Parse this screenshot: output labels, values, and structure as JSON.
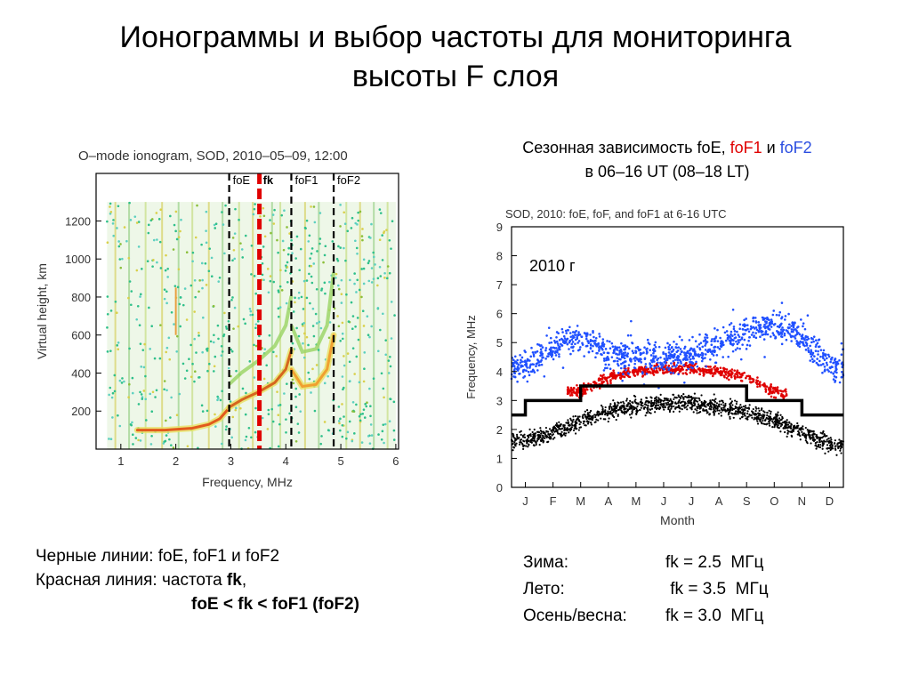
{
  "slide": {
    "title_line1": "Ионограммы и выбор частоты для мониторинга",
    "title_line2": "высоты F слоя"
  },
  "right_caption": {
    "part1": "Сезонная зависимость foE, ",
    "fof1": "foF1",
    "and": " и ",
    "fof2": "foF2",
    "line2": "в 06–16 UT (08–18 LT)"
  },
  "left_notes": {
    "line1": "Черные линии: foE, foF1 и foF2",
    "line2_prefix": "Красная линия: частота ",
    "line2_bold": "fk",
    "line2_suffix": ",",
    "line3": "foE < fk < foF1 (foF2)"
  },
  "right_notes": [
    {
      "label": "Зима:",
      "value": "fk = 2.5  МГц"
    },
    {
      "label": "Лето:",
      "value": " fk = 3.5  МГц"
    },
    {
      "label": "Осень/весна:",
      "value": "fk = 3.0  МГц"
    }
  ],
  "chart_data": [
    {
      "type": "scatter",
      "title": "O–mode ionogram, SOD, 2010–05–09, 12:00",
      "xlabel": "Frequency, MHz",
      "ylabel": "Virtual height, km",
      "xlim": [
        0.55,
        6.05
      ],
      "ylim": [
        0,
        1450
      ],
      "xticks": [
        1,
        2,
        3,
        4,
        5,
        6
      ],
      "yticks": [
        200,
        400,
        600,
        800,
        1000,
        1200
      ],
      "markers": [
        {
          "label": "foE",
          "x": 2.97,
          "color": "#000000",
          "style": "dashed"
        },
        {
          "label": "fk",
          "x": 3.52,
          "color": "#e00000",
          "style": "dashed"
        },
        {
          "label": "foF1",
          "x": 4.1,
          "color": "#000000",
          "style": "dashed"
        },
        {
          "label": "foF2",
          "x": 4.87,
          "color": "#000000",
          "style": "dashed"
        }
      ],
      "traces": [
        {
          "name": "E",
          "x": [
            1.3,
            1.8,
            2.3,
            2.6,
            2.8,
            2.95
          ],
          "y": [
            100,
            100,
            110,
            130,
            160,
            210
          ]
        },
        {
          "name": "F1",
          "x": [
            2.97,
            3.2,
            3.5,
            3.8,
            4.0,
            4.1
          ],
          "y": [
            220,
            260,
            300,
            350,
            420,
            520
          ]
        },
        {
          "name": "F2",
          "x": [
            4.1,
            4.3,
            4.55,
            4.75,
            4.87
          ],
          "y": [
            420,
            330,
            340,
            420,
            600
          ]
        }
      ]
    },
    {
      "type": "scatter",
      "title": "SOD, 2010: foE, foF, and foF1 at 6-16 UTC",
      "xlabel": "Month",
      "ylabel": "Frequency, MHz",
      "categories": [
        "J",
        "F",
        "M",
        "A",
        "M",
        "J",
        "J",
        "A",
        "S",
        "O",
        "N",
        "D"
      ],
      "xlim": [
        0,
        12
      ],
      "ylim": [
        0,
        9
      ],
      "yticks": [
        0,
        1,
        2,
        3,
        4,
        5,
        6,
        7,
        8,
        9
      ],
      "annotation": "2010 г",
      "series": [
        {
          "name": "foE",
          "color": "#000000",
          "center": [
            1.6,
            1.9,
            2.3,
            2.6,
            2.8,
            2.9,
            2.9,
            2.8,
            2.6,
            2.3,
            1.9,
            1.5
          ]
        },
        {
          "name": "foF1",
          "color": "#e00000",
          "center": [
            null,
            null,
            3.3,
            3.8,
            4.0,
            4.1,
            4.1,
            4.0,
            3.8,
            3.3,
            null,
            null
          ]
        },
        {
          "name": "foF2",
          "color": "#2050ff",
          "center": [
            4.2,
            4.8,
            5.2,
            4.6,
            4.5,
            4.5,
            4.6,
            4.9,
            5.4,
            5.6,
            5.2,
            4.2
          ]
        }
      ],
      "fk_step": {
        "x": [
          0,
          0.5,
          0.5,
          2.5,
          2.5,
          8.5,
          8.5,
          10.5,
          10.5,
          12
        ],
        "y": [
          2.5,
          2.5,
          3.0,
          3.0,
          3.5,
          3.5,
          3.0,
          3.0,
          2.5,
          2.5
        ]
      }
    }
  ]
}
